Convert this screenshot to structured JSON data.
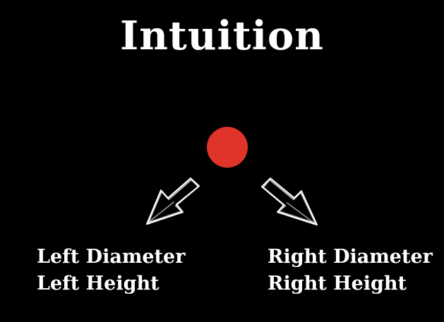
{
  "title": "Intuition",
  "node": {
    "color": "#e0342b"
  },
  "left_branch": {
    "line1": "Left Diameter",
    "line2": "Left Height",
    "arrow_icon": "hand-drawn-arrow-down-left-icon"
  },
  "right_branch": {
    "line1": "Right Diameter",
    "line2": "Right Height",
    "arrow_icon": "hand-drawn-arrow-down-right-icon"
  }
}
